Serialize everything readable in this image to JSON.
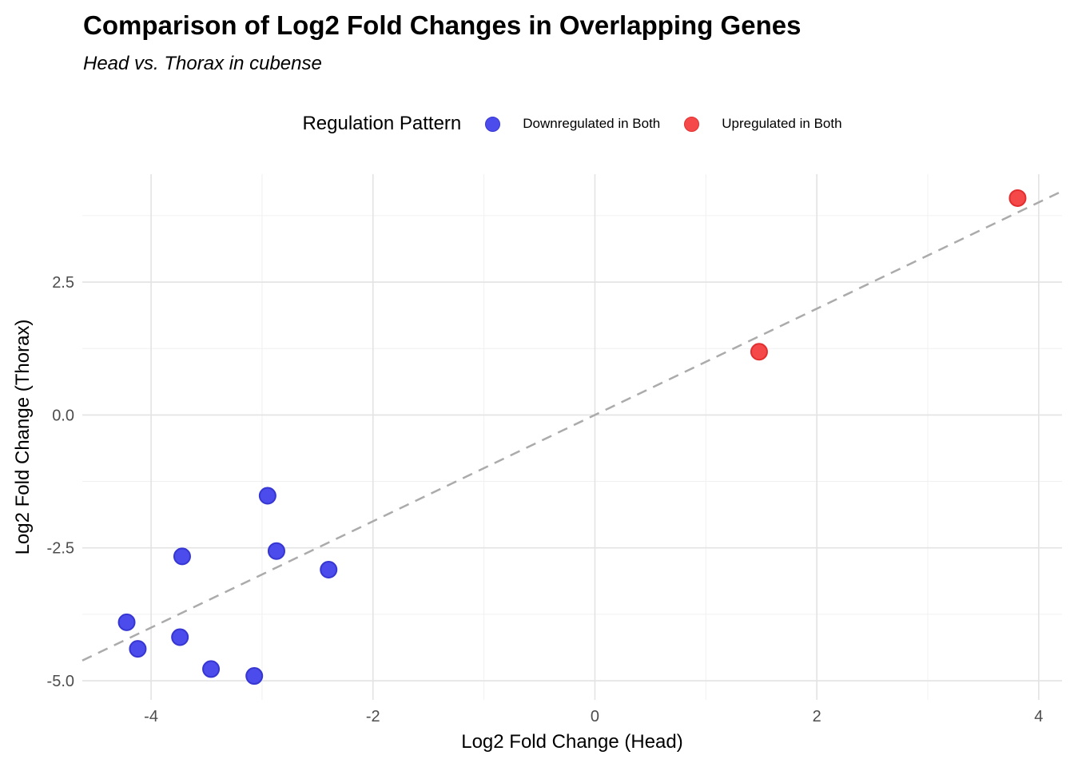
{
  "header": {
    "title": "Comparison of Log2 Fold Changes in Overlapping Genes",
    "subtitle": "Head vs. Thorax in cubense"
  },
  "legend": {
    "title": "Regulation Pattern",
    "items": [
      {
        "label": "Downregulated in Both",
        "color": "#4C4CEC",
        "border": "#3636D2"
      },
      {
        "label": "Upregulated in Both",
        "color": "#F54949",
        "border": "#E22E2E"
      }
    ]
  },
  "chart_data": {
    "type": "scatter",
    "title": "Comparison of Log2 Fold Changes in Overlapping Genes",
    "subtitle": "Head vs. Thorax in cubense",
    "xlabel": "Log2 Fold Change (Head)",
    "ylabel": "Log2 Fold Change (Thorax)",
    "xlim": [
      -4.62,
      4.21
    ],
    "ylim": [
      -5.36,
      4.53
    ],
    "x_major_ticks": [
      -4,
      -2,
      0,
      2,
      4
    ],
    "x_tick_labels": [
      "-4",
      "-2",
      "0",
      "2",
      "4"
    ],
    "x_minor_ticks": [
      -3,
      -1,
      1,
      3
    ],
    "y_major_ticks": [
      -5.0,
      -2.5,
      0.0,
      2.5
    ],
    "y_tick_labels": [
      "-5.0",
      "-2.5",
      "0.0",
      "2.5"
    ],
    "y_minor_ticks": [
      -3.75,
      -1.25,
      1.25,
      3.75
    ],
    "grid": true,
    "legend_position": "top",
    "series": [
      {
        "name": "Downregulated in Both",
        "color": "#4C4CEC",
        "border": "#3636D2",
        "points": [
          [
            -4.22,
            -3.9
          ],
          [
            -4.12,
            -4.4
          ],
          [
            -3.74,
            -4.18
          ],
          [
            -3.72,
            -2.66
          ],
          [
            -3.46,
            -4.78
          ],
          [
            -3.07,
            -4.91
          ],
          [
            -2.95,
            -1.52
          ],
          [
            -2.87,
            -2.56
          ],
          [
            -2.4,
            -2.91
          ]
        ]
      },
      {
        "name": "Upregulated in Both",
        "color": "#F54949",
        "border": "#E22E2E",
        "points": [
          [
            1.48,
            1.19
          ],
          [
            3.81,
            4.08
          ]
        ]
      }
    ],
    "reference_line": {
      "type": "identity",
      "slope": 1,
      "intercept": 0,
      "style": "dashed",
      "color": "#ABABAB"
    },
    "colors": {
      "grid_major": "#E3E3E3",
      "grid_minor": "#F0F0F0",
      "tick_label": "#4D4D4D",
      "axis_title": "#000000"
    }
  }
}
